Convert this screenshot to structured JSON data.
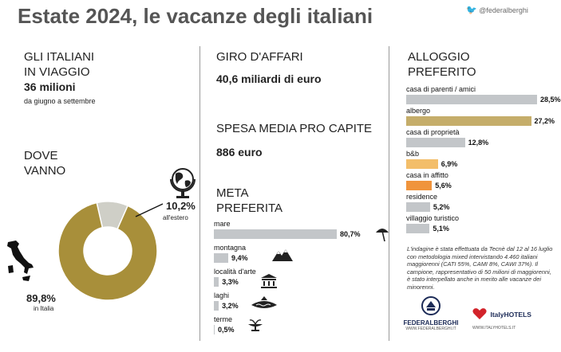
{
  "header": {
    "title": "Estate 2024, le vacanze degli italiani",
    "twitter_handle": "@federalberghi"
  },
  "travellers": {
    "label_line1": "GLI ITALIANI",
    "label_line2": "IN VIAGGIO",
    "count": "36 milioni",
    "period": "da giugno a settembre"
  },
  "where": {
    "label_line1": "DOVE",
    "label_line2": "VANNO",
    "italy_value": "89,8%",
    "italy_label": "in Italia",
    "abroad_value": "10,2%",
    "abroad_label": "all'estero"
  },
  "business": {
    "label": "GIRO D'AFFARI",
    "value": "40,6 miliardi di euro"
  },
  "spending": {
    "label": "SPESA MEDIA PRO CAPITE",
    "value": "886 euro"
  },
  "destination": {
    "label_line1": "META",
    "label_line2": "PREFERITA"
  },
  "accommodation": {
    "label_line1": "ALLOGGIO",
    "label_line2": "PREFERITO"
  },
  "note": "L'indagine è stata effettuata da Tecnè dal 12 al 16 luglio con metodologia mixed intervistando 4.460 italiani maggiorenni (CATI 55%, CAMI 8%, CAWI 37%). Il campione, rappresentativo di 50 milioni di maggiorenni, è stato interpellato anche in merito alle vacanze dei minorenni.",
  "logos": {
    "federalberghi": "FEDERALBERGHI",
    "federalberghi_url": "WWW.FEDERALBERGHI.IT",
    "italyhotels": "ItalyHOTELS",
    "italyhotels_url": "WWW.ITALYHOTELS.IT"
  },
  "chart_data": [
    {
      "type": "pie",
      "title": "DOVE VANNO",
      "categories": [
        "in Italia",
        "all'estero"
      ],
      "values": [
        89.8,
        10.2
      ],
      "colors": [
        "#a88f3a",
        "#cfcfc7"
      ]
    },
    {
      "type": "bar",
      "title": "META PREFERITA",
      "categories": [
        "mare",
        "montagna",
        "località d'arte",
        "laghi",
        "terme"
      ],
      "values": [
        80.7,
        9.4,
        3.3,
        3.2,
        0.5
      ],
      "value_labels": [
        "80,7%",
        "9,4%",
        "3,3%",
        "3,2%",
        "0,5%"
      ],
      "color": "#c3c6c9"
    },
    {
      "type": "bar",
      "title": "ALLOGGIO PREFERITO",
      "categories": [
        "casa di parenti / amici",
        "albergo",
        "casa di proprietà",
        "b&b",
        "casa in affitto",
        "residence",
        "villaggio turistico"
      ],
      "values": [
        28.5,
        27.2,
        12.8,
        6.9,
        5.6,
        5.2,
        5.1
      ],
      "value_labels": [
        "28,5%",
        "27,2%",
        "12,8%",
        "6,9%",
        "5,6%",
        "5,2%",
        "5,1%"
      ],
      "colors": [
        "#c3c6c9",
        "#c5ad6a",
        "#c3c6c9",
        "#f3be6a",
        "#f0943c",
        "#c3c6c9",
        "#c3c6c9"
      ]
    }
  ]
}
